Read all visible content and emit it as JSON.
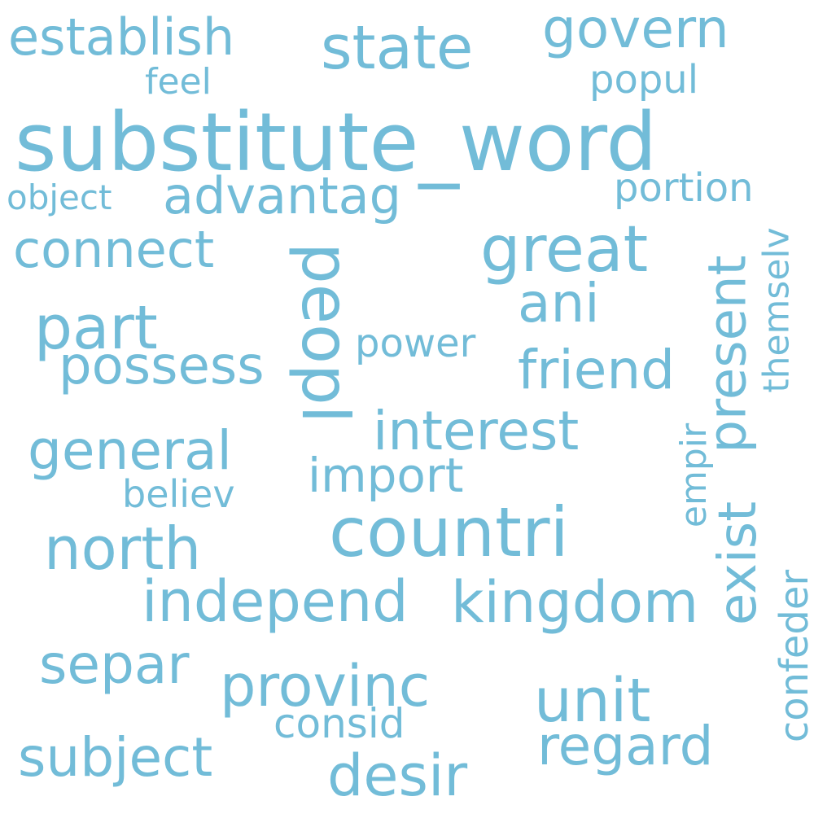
{
  "word_color": "#72bcd8",
  "background_color": "#ffffff",
  "words": [
    {
      "id": "substitute-word",
      "text": "substitute_word",
      "orientation": "horizontal"
    },
    {
      "id": "establish",
      "text": "establish",
      "orientation": "horizontal"
    },
    {
      "id": "state",
      "text": "state",
      "orientation": "horizontal"
    },
    {
      "id": "govern",
      "text": "govern",
      "orientation": "horizontal"
    },
    {
      "id": "feel",
      "text": "feel",
      "orientation": "horizontal"
    },
    {
      "id": "popul",
      "text": "popul",
      "orientation": "horizontal"
    },
    {
      "id": "object",
      "text": "object",
      "orientation": "horizontal"
    },
    {
      "id": "advantag",
      "text": "advantag",
      "orientation": "horizontal"
    },
    {
      "id": "portion",
      "text": "portion",
      "orientation": "horizontal"
    },
    {
      "id": "connect",
      "text": "connect",
      "orientation": "horizontal"
    },
    {
      "id": "great",
      "text": "great",
      "orientation": "horizontal"
    },
    {
      "id": "peopl",
      "text": "peopl",
      "orientation": "vertical"
    },
    {
      "id": "present",
      "text": "present",
      "orientation": "vertical"
    },
    {
      "id": "themselv",
      "text": "themselv",
      "orientation": "vertical"
    },
    {
      "id": "part",
      "text": "part",
      "orientation": "horizontal"
    },
    {
      "id": "ani",
      "text": "ani",
      "orientation": "horizontal"
    },
    {
      "id": "power",
      "text": "power",
      "orientation": "horizontal"
    },
    {
      "id": "possess",
      "text": "possess",
      "orientation": "horizontal"
    },
    {
      "id": "friend",
      "text": "friend",
      "orientation": "horizontal"
    },
    {
      "id": "interest",
      "text": "interest",
      "orientation": "horizontal"
    },
    {
      "id": "empir",
      "text": "empir",
      "orientation": "vertical"
    },
    {
      "id": "general",
      "text": "general",
      "orientation": "horizontal"
    },
    {
      "id": "import",
      "text": "import",
      "orientation": "horizontal"
    },
    {
      "id": "believ",
      "text": "believ",
      "orientation": "horizontal"
    },
    {
      "id": "exist",
      "text": "exist",
      "orientation": "vertical"
    },
    {
      "id": "countri",
      "text": "countri",
      "orientation": "horizontal"
    },
    {
      "id": "north",
      "text": "north",
      "orientation": "horizontal"
    },
    {
      "id": "confeder",
      "text": "confeder",
      "orientation": "vertical"
    },
    {
      "id": "independ",
      "text": "independ",
      "orientation": "horizontal"
    },
    {
      "id": "kingdom",
      "text": "kingdom",
      "orientation": "horizontal"
    },
    {
      "id": "separ",
      "text": "separ",
      "orientation": "horizontal"
    },
    {
      "id": "provinc",
      "text": "provinc",
      "orientation": "horizontal"
    },
    {
      "id": "unit",
      "text": "unit",
      "orientation": "horizontal"
    },
    {
      "id": "consid",
      "text": "consid",
      "orientation": "horizontal"
    },
    {
      "id": "regard",
      "text": "regard",
      "orientation": "horizontal"
    },
    {
      "id": "subject",
      "text": "subject",
      "orientation": "horizontal"
    },
    {
      "id": "desir",
      "text": "desir",
      "orientation": "horizontal"
    }
  ]
}
